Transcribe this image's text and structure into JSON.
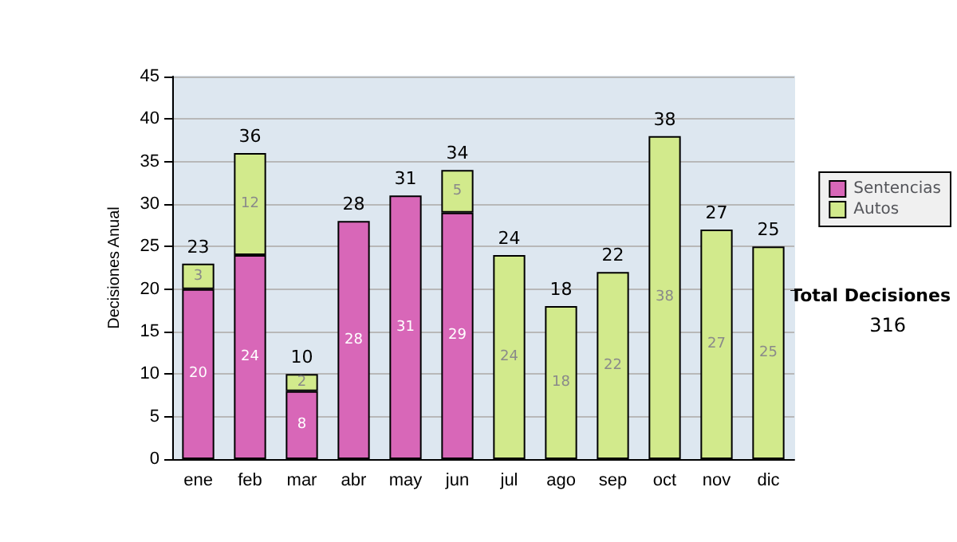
{
  "chart_data": {
    "type": "bar",
    "stacked": true,
    "ylabel": "Decisiones Anual",
    "categories": [
      "ene",
      "feb",
      "mar",
      "abr",
      "may",
      "jun",
      "jul",
      "ago",
      "sep",
      "oct",
      "nov",
      "dic"
    ],
    "series": [
      {
        "name": "Sentencias",
        "color": "#d867b8",
        "values": [
          20,
          24,
          8,
          28,
          31,
          29,
          null,
          null,
          null,
          null,
          null,
          null
        ]
      },
      {
        "name": "Autos",
        "color": "#d2ea8c",
        "values": [
          3,
          12,
          2,
          null,
          null,
          5,
          24,
          18,
          22,
          38,
          27,
          25
        ]
      }
    ],
    "totals": [
      "23",
      "36",
      "10",
      "28",
      "31",
      "34",
      "24",
      "18",
      "22",
      "38",
      "27",
      "25"
    ],
    "data_labels": true,
    "ylim": [
      0,
      45
    ],
    "yticks": [
      0,
      5,
      10,
      15,
      20,
      25,
      30,
      35,
      40,
      45
    ],
    "grid": "y",
    "legend": "right",
    "annotations": [
      "Total Decisiones",
      "316"
    ]
  }
}
